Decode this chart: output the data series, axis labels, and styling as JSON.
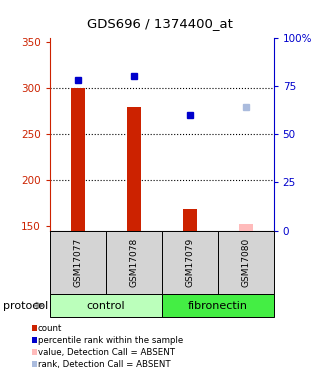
{
  "title": "GDS696 / 1374400_at",
  "samples": [
    "GSM17077",
    "GSM17078",
    "GSM17079",
    "GSM17080"
  ],
  "bar_values": [
    300,
    279,
    168,
    152
  ],
  "bar_color": "#cc2200",
  "bar_absent_color": "#ffbbbb",
  "blue_values_pct": [
    78,
    80,
    60,
    64
  ],
  "blue_color": "#0000cc",
  "blue_absent_color": "#aabbdd",
  "absent_flags": [
    false,
    false,
    false,
    true
  ],
  "ylim_left": [
    145,
    355
  ],
  "ylim_right": [
    0,
    100
  ],
  "yticks_left": [
    150,
    200,
    250,
    300,
    350
  ],
  "yticks_right": [
    0,
    25,
    50,
    75,
    100
  ],
  "ytick_labels_right": [
    "0",
    "25",
    "50",
    "75",
    "100%"
  ],
  "left_axis_color": "#cc2200",
  "right_axis_color": "#0000cc",
  "groups": [
    {
      "label": "control",
      "samples": [
        0,
        1
      ],
      "color": "#bbffbb"
    },
    {
      "label": "fibronectin",
      "samples": [
        2,
        3
      ],
      "color": "#44ee44"
    }
  ],
  "protocol_label": "protocol",
  "bar_width": 0.25,
  "gridline_values": [
    200,
    250,
    300
  ],
  "legend_items": [
    {
      "label": "count",
      "color": "#cc2200"
    },
    {
      "label": "percentile rank within the sample",
      "color": "#0000cc"
    },
    {
      "label": "value, Detection Call = ABSENT",
      "color": "#ffbbbb"
    },
    {
      "label": "rank, Detection Call = ABSENT",
      "color": "#aabbdd"
    }
  ]
}
